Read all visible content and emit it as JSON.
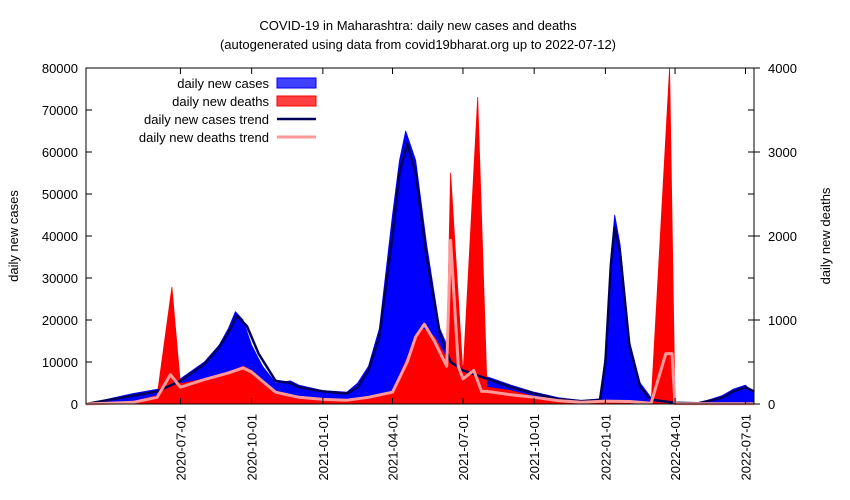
{
  "chart_data": {
    "type": "bar",
    "title": "COVID-19 in Maharashtra: daily new cases and deaths",
    "subtitle": "(autogenerated using data from covid19bharat.org up to 2022-07-12)",
    "ylabel": "daily new cases",
    "y2label": "daily new deaths",
    "ylim": [
      0,
      80000
    ],
    "y2lim": [
      0,
      4000
    ],
    "xlim": [
      "2020-03-01",
      "2022-07-12"
    ],
    "x_tick_labels": [
      "2020-07-01",
      "2020-10-01",
      "2021-01-01",
      "2021-04-01",
      "2021-07-01",
      "2021-10-01",
      "2022-01-01",
      "2022-04-01",
      "2022-07-01"
    ],
    "y_tick_labels": [
      "0",
      "10000",
      "20000",
      "30000",
      "40000",
      "50000",
      "60000",
      "70000",
      "80000"
    ],
    "y2_tick_labels": [
      "0",
      "1000",
      "2000",
      "3000",
      "4000"
    ],
    "legend_position": "top-left",
    "legend": [
      {
        "label": "daily new cases",
        "kind": "bar",
        "color": "#0000ff"
      },
      {
        "label": "daily new deaths",
        "kind": "bar",
        "color": "#ff0000"
      },
      {
        "label": "daily new cases trend",
        "kind": "line",
        "color": "#00005a"
      },
      {
        "label": "daily new deaths trend",
        "kind": "line",
        "color": "#ff9999"
      }
    ],
    "series": [
      {
        "name": "daily new cases",
        "axis": "left",
        "color": "#0000ff",
        "x": [
          "2020-03-01",
          "2020-05-01",
          "2020-06-01",
          "2020-07-01",
          "2020-08-01",
          "2020-08-20",
          "2020-09-01",
          "2020-09-10",
          "2020-09-20",
          "2020-10-01",
          "2020-10-15",
          "2020-11-01",
          "2020-11-20",
          "2020-12-01",
          "2021-01-01",
          "2021-02-01",
          "2021-02-15",
          "2021-03-01",
          "2021-03-15",
          "2021-04-01",
          "2021-04-10",
          "2021-04-18",
          "2021-05-01",
          "2021-05-15",
          "2021-06-01",
          "2021-06-15",
          "2021-07-01",
          "2021-08-01",
          "2021-09-01",
          "2021-10-01",
          "2021-11-01",
          "2021-12-01",
          "2021-12-25",
          "2022-01-01",
          "2022-01-08",
          "2022-01-13",
          "2022-01-20",
          "2022-02-01",
          "2022-02-15",
          "2022-03-01",
          "2022-04-01",
          "2022-05-01",
          "2022-06-01",
          "2022-06-15",
          "2022-07-01",
          "2022-07-12"
        ],
        "values": [
          0,
          2500,
          3500,
          6000,
          10000,
          14000,
          18000,
          22000,
          20000,
          14000,
          9000,
          5000,
          5500,
          4500,
          3200,
          2800,
          5000,
          9000,
          18000,
          45000,
          58000,
          65000,
          58000,
          38000,
          18000,
          12000,
          9000,
          6500,
          4500,
          2800,
          1500,
          800,
          1200,
          12000,
          35000,
          45000,
          38000,
          15000,
          5000,
          1500,
          400,
          200,
          2000,
          3500,
          4500,
          2500
        ]
      },
      {
        "name": "daily new deaths",
        "axis": "right",
        "color": "#ff0000",
        "x": [
          "2020-03-01",
          "2020-05-01",
          "2020-06-01",
          "2020-06-20",
          "2020-07-01",
          "2020-08-01",
          "2020-09-01",
          "2020-09-20",
          "2020-10-01",
          "2020-11-01",
          "2020-12-01",
          "2021-01-01",
          "2021-02-01",
          "2021-03-01",
          "2021-04-01",
          "2021-04-20",
          "2021-05-01",
          "2021-05-10",
          "2021-05-25",
          "2021-06-10",
          "2021-06-15",
          "2021-07-01",
          "2021-07-20",
          "2021-08-01",
          "2021-09-01",
          "2021-10-01",
          "2021-11-01",
          "2021-12-01",
          "2022-01-01",
          "2022-02-01",
          "2022-03-01",
          "2022-03-25",
          "2022-04-01",
          "2022-05-01",
          "2022-07-12"
        ],
        "values": [
          0,
          30,
          100,
          1390,
          240,
          300,
          380,
          450,
          400,
          150,
          90,
          60,
          50,
          90,
          150,
          550,
          800,
          900,
          800,
          550,
          2750,
          350,
          3650,
          200,
          160,
          90,
          40,
          25,
          40,
          35,
          10,
          4000,
          5,
          3,
          5
        ]
      },
      {
        "name": "daily new cases trend",
        "axis": "left",
        "color": "#00005a",
        "x": [
          "2020-03-01",
          "2020-05-01",
          "2020-06-01",
          "2020-07-01",
          "2020-08-01",
          "2020-08-20",
          "2020-09-01",
          "2020-09-12",
          "2020-09-25",
          "2020-10-10",
          "2020-11-01",
          "2020-11-20",
          "2020-12-01",
          "2021-01-01",
          "2021-02-01",
          "2021-02-15",
          "2021-03-01",
          "2021-03-15",
          "2021-04-01",
          "2021-04-10",
          "2021-04-20",
          "2021-05-01",
          "2021-05-15",
          "2021-06-01",
          "2021-06-15",
          "2021-07-01",
          "2021-08-01",
          "2021-09-01",
          "2021-10-01",
          "2021-11-01",
          "2021-12-01",
          "2021-12-25",
          "2022-01-01",
          "2022-01-08",
          "2022-01-13",
          "2022-01-20",
          "2022-02-01",
          "2022-02-15",
          "2022-03-01",
          "2022-04-01",
          "2022-05-01",
          "2022-06-01",
          "2022-06-15",
          "2022-07-01",
          "2022-07-12"
        ],
        "values": [
          0,
          2000,
          3000,
          5500,
          9500,
          13500,
          17000,
          21000,
          18500,
          12000,
          5500,
          5000,
          4000,
          3000,
          2500,
          4000,
          8000,
          16000,
          40000,
          55000,
          62000,
          55000,
          35000,
          17000,
          10000,
          8000,
          6000,
          4000,
          2500,
          1200,
          700,
          1000,
          10000,
          33000,
          42000,
          36000,
          14000,
          4000,
          1000,
          300,
          200,
          1500,
          3000,
          4000,
          3000
        ]
      },
      {
        "name": "daily new deaths trend",
        "axis": "right",
        "color": "#ff9999",
        "x": [
          "2020-03-01",
          "2020-05-01",
          "2020-06-01",
          "2020-06-18",
          "2020-07-01",
          "2020-08-01",
          "2020-09-01",
          "2020-09-20",
          "2020-10-01",
          "2020-11-01",
          "2020-12-01",
          "2021-01-01",
          "2021-02-01",
          "2021-03-01",
          "2021-04-01",
          "2021-04-20",
          "2021-05-01",
          "2021-05-12",
          "2021-05-25",
          "2021-06-10",
          "2021-06-15",
          "2021-06-25",
          "2021-07-01",
          "2021-07-15",
          "2021-07-25",
          "2021-08-01",
          "2021-09-01",
          "2021-10-01",
          "2021-11-01",
          "2021-12-01",
          "2022-01-01",
          "2022-02-01",
          "2022-03-01",
          "2022-03-20",
          "2022-03-28",
          "2022-04-01",
          "2022-05-01",
          "2022-07-12"
        ],
        "values": [
          0,
          20,
          80,
          350,
          200,
          290,
          370,
          430,
          380,
          140,
          80,
          55,
          45,
          80,
          140,
          500,
          800,
          950,
          750,
          450,
          1950,
          450,
          300,
          400,
          150,
          150,
          110,
          80,
          40,
          20,
          35,
          30,
          10,
          600,
          600,
          5,
          3,
          4
        ]
      }
    ]
  }
}
